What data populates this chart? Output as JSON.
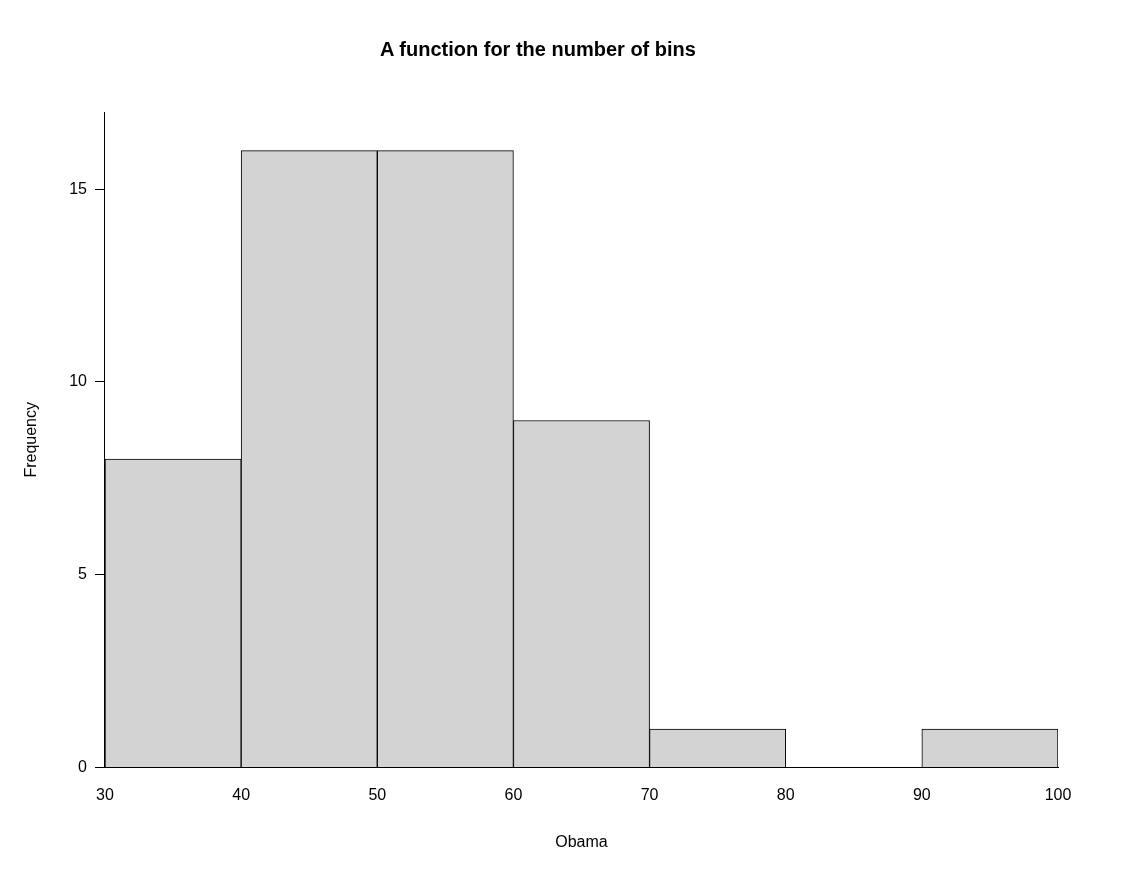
{
  "chart_data": {
    "type": "histogram",
    "title": "A function for the number of bins",
    "xlabel": "Obama",
    "ylabel": "Frequency",
    "bins": [
      30,
      40,
      50,
      60,
      70,
      80,
      90,
      100
    ],
    "values": [
      8,
      16,
      16,
      9,
      1,
      0,
      1
    ],
    "color": "#d3d3d3",
    "xlim": [
      30,
      100
    ],
    "xticks": [
      30,
      40,
      50,
      60,
      70,
      80,
      90,
      100
    ],
    "ylim": [
      0,
      17
    ],
    "yticks": [
      0,
      5,
      10,
      15
    ],
    "grid": false,
    "legend": false
  }
}
